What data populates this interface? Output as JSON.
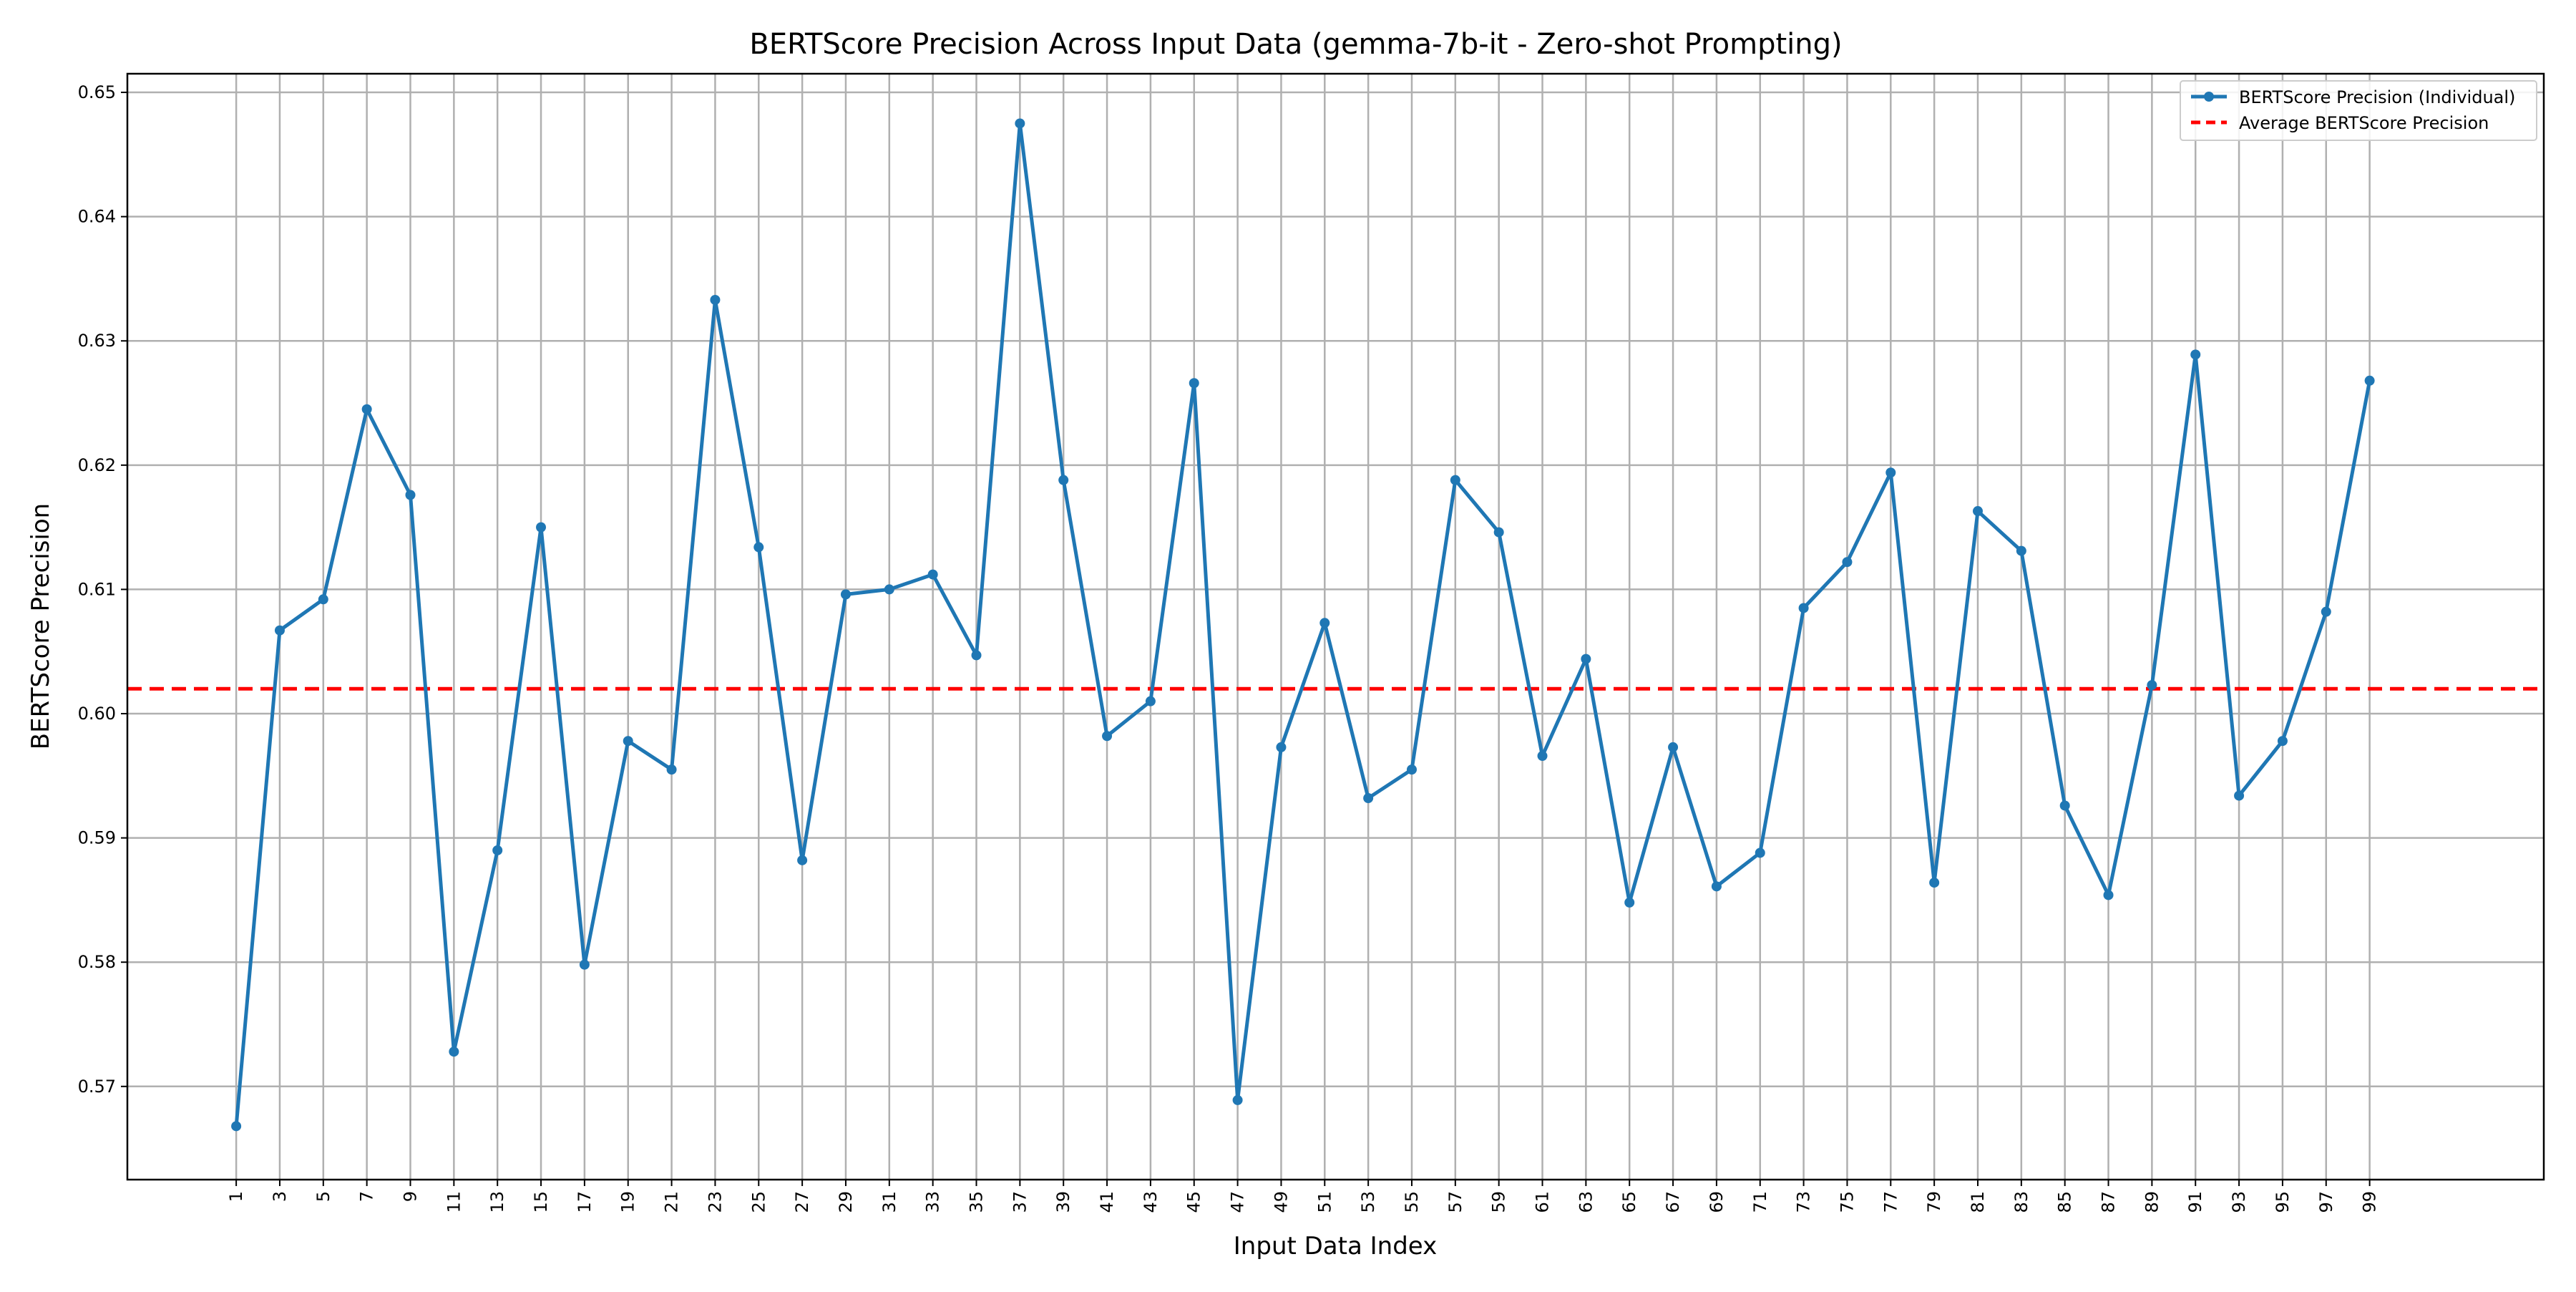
{
  "chart_data": {
    "type": "line",
    "title": "BERTScore Precision Across Input Data (gemma-7b-it - Zero-shot Prompting)",
    "xlabel": "Input Data Index",
    "ylabel": "BERTScore Precision",
    "xlim": [
      -4,
      107
    ],
    "ylim": [
      0.5625,
      0.6515
    ],
    "grid": true,
    "legend_position": "upper right",
    "x_ticks": [
      1,
      3,
      5,
      7,
      9,
      11,
      13,
      15,
      17,
      19,
      21,
      23,
      25,
      27,
      29,
      31,
      33,
      35,
      37,
      39,
      41,
      43,
      45,
      47,
      49,
      51,
      53,
      55,
      57,
      59,
      61,
      63,
      65,
      67,
      69,
      71,
      73,
      75,
      77,
      79,
      81,
      83,
      85,
      87,
      89,
      91,
      93,
      95,
      97,
      99
    ],
    "y_ticks": [
      0.57,
      0.58,
      0.59,
      0.6,
      0.61,
      0.62,
      0.63,
      0.64,
      0.65
    ],
    "y_tick_labels": [
      "0.57",
      "0.58",
      "0.59",
      "0.60",
      "0.61",
      "0.62",
      "0.63",
      "0.64",
      "0.65"
    ],
    "series": [
      {
        "name": "BERTScore Precision (Individual)",
        "color": "#1f77b4",
        "style": "solid-with-markers",
        "x": [
          1,
          3,
          5,
          7,
          9,
          11,
          13,
          15,
          17,
          19,
          21,
          23,
          25,
          27,
          29,
          31,
          33,
          35,
          37,
          39,
          41,
          43,
          45,
          47,
          49,
          51,
          53,
          55,
          57,
          59,
          61,
          63,
          65,
          67,
          69,
          71,
          73,
          75,
          77,
          79,
          81,
          83,
          85,
          87,
          89,
          91,
          93,
          95,
          97,
          99
        ],
        "values": [
          0.5668,
          0.6067,
          0.6092,
          0.6245,
          0.6176,
          0.5728,
          0.589,
          0.615,
          0.5798,
          0.5978,
          0.5955,
          0.6333,
          0.6134,
          0.5882,
          0.6096,
          0.61,
          0.6112,
          0.6047,
          0.6475,
          0.6188,
          0.5982,
          0.601,
          0.6266,
          0.5689,
          0.5973,
          0.6073,
          0.5932,
          0.5955,
          0.6188,
          0.6146,
          0.5966,
          0.6044,
          0.5848,
          0.5973,
          0.5861,
          0.5888,
          0.6085,
          0.6122,
          0.6194,
          0.5864,
          0.6163,
          0.6131,
          0.5926,
          0.5854,
          0.6023,
          0.6289,
          0.5934,
          0.5978,
          0.6082,
          0.6268
        ]
      },
      {
        "name": "Average BERTScore Precision",
        "color": "#ff0000",
        "style": "dashed",
        "value": 0.602
      }
    ]
  }
}
